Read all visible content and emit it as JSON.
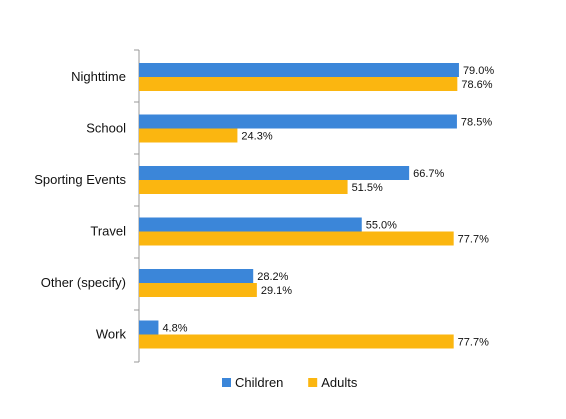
{
  "chart_data": {
    "type": "bar",
    "orientation": "horizontal",
    "categories": [
      "Nighttime",
      "School",
      "Sporting Events",
      "Travel",
      "Other (specify)",
      "Work"
    ],
    "series": [
      {
        "name": "Children",
        "color": "#3b86d9",
        "values": [
          79.0,
          78.5,
          66.7,
          55.0,
          28.2,
          4.8
        ],
        "labels": [
          "79.0%",
          "78.5%",
          "66.7%",
          "55.0%",
          "28.2%",
          "4.8%"
        ]
      },
      {
        "name": "Adults",
        "color": "#fbb610",
        "values": [
          78.6,
          24.3,
          51.5,
          77.7,
          29.1,
          77.7
        ],
        "labels": [
          "78.6%",
          "24.3%",
          "51.5%",
          "77.7%",
          "29.1%",
          "77.7%"
        ]
      }
    ],
    "xlim": [
      0,
      100
    ],
    "grid": false,
    "legend_position": "bottom"
  }
}
